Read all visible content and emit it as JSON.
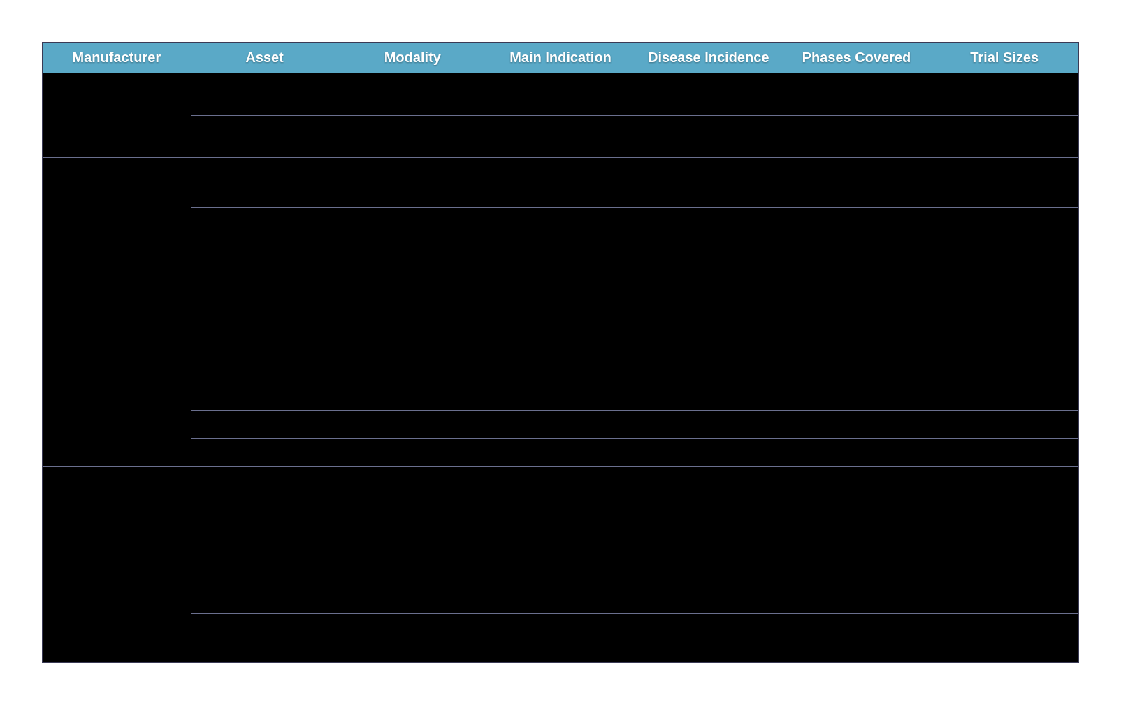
{
  "table": {
    "header_bg": "#5aa9c7",
    "header_text_color": "#ffffff",
    "header_fontsize": 20,
    "body_bg": "#000000",
    "rule_color": "#6a6f8e",
    "border_color": "#3a3a55",
    "columns": [
      "Manufacturer",
      "Asset",
      "Modality",
      "Main Indication",
      "Disease Incidence",
      "Phases Covered",
      "Trial Sizes"
    ],
    "groups": [
      {
        "manufacturer": "",
        "rows": [
          {
            "asset": "",
            "modality": "",
            "indication": "",
            "incidence": "",
            "phases": "",
            "sizes": "",
            "h": "h1"
          },
          {
            "asset": "",
            "modality": "",
            "indication": "",
            "incidence": "",
            "phases": "",
            "sizes": "",
            "h": "h1"
          }
        ]
      },
      {
        "manufacturer": "",
        "rows": [
          {
            "asset": "",
            "modality": "",
            "indication": "",
            "incidence": "",
            "phases": "",
            "sizes": "",
            "h": "h2"
          },
          {
            "asset": "",
            "modality": "",
            "indication": "",
            "incidence": "",
            "phases": "",
            "sizes": "",
            "h": "h2"
          },
          {
            "asset": "",
            "modality": "",
            "indication": "",
            "incidence": "",
            "phases": "",
            "sizes": "",
            "h": "h3"
          },
          {
            "asset": "",
            "modality": "",
            "indication": "",
            "incidence": "",
            "phases": "",
            "sizes": "",
            "h": "h3"
          },
          {
            "asset": "",
            "modality": "",
            "indication": "",
            "incidence": "",
            "phases": "",
            "sizes": "",
            "h": "h2"
          }
        ]
      },
      {
        "manufacturer": "",
        "rows": [
          {
            "asset": "",
            "modality": "",
            "indication": "",
            "incidence": "",
            "phases": "",
            "sizes": "",
            "h": "h2"
          },
          {
            "asset": "",
            "modality": "",
            "indication": "",
            "incidence": "",
            "phases": "",
            "sizes": "",
            "h": "h3"
          },
          {
            "asset": "",
            "modality": "",
            "indication": "",
            "incidence": "",
            "phases": "",
            "sizes": "",
            "h": "h3"
          }
        ]
      },
      {
        "manufacturer": "",
        "rows": [
          {
            "asset": "",
            "modality": "",
            "indication": "",
            "incidence": "",
            "phases": "",
            "sizes": "",
            "h": "h2"
          },
          {
            "asset": "",
            "modality": "",
            "indication": "",
            "incidence": "",
            "phases": "",
            "sizes": "",
            "h": "h2"
          },
          {
            "asset": "",
            "modality": "",
            "indication": "",
            "incidence": "",
            "phases": "",
            "sizes": "",
            "h": "h2"
          },
          {
            "asset": "",
            "modality": "",
            "indication": "",
            "incidence": "",
            "phases": "",
            "sizes": "",
            "h": "h2"
          }
        ]
      }
    ]
  }
}
